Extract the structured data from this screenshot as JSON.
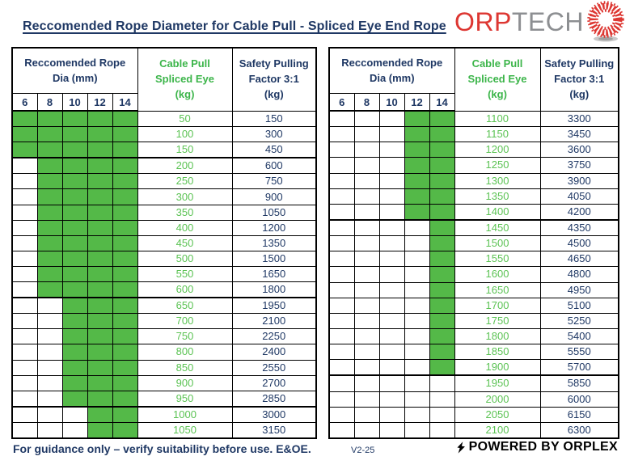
{
  "page": {
    "title": "Reccomended Rope Diameter for Cable Pull - Spliced Eye End Rope"
  },
  "logo": {
    "part_red": "ORP",
    "part_gray": "TECH",
    "icon": "rope-end-starburst-icon"
  },
  "footer": {
    "guidance": "For guidance only – verify suitability before use. E&OE.",
    "version": "V2-25",
    "powered_by": "POWERED BY ORPLEX"
  },
  "colors": {
    "navy": "#1F3864",
    "green_fill": "#54B948",
    "green_header_text": "#3CB54A",
    "green_value_text": "#5CC354",
    "logo_red": "#DD3732",
    "logo_gray": "#8D8F92"
  },
  "tables": [
    {
      "header": {
        "dia_title": "Reccomended Rope\nDia (mm)",
        "dia_columns": [
          "6",
          "8",
          "10",
          "12",
          "14"
        ],
        "cable_title": "Cable Pull\nSpliced Eye\n(kg)",
        "safety_title": "Safety Pulling\nFactor 3:1\n(kg)"
      },
      "rows": [
        {
          "cable": "50",
          "safety": "150",
          "green_from": 0,
          "group_end": false
        },
        {
          "cable": "100",
          "safety": "300",
          "green_from": 0,
          "group_end": false
        },
        {
          "cable": "150",
          "safety": "450",
          "green_from": 0,
          "group_end": true
        },
        {
          "cable": "200",
          "safety": "600",
          "green_from": 1,
          "group_end": false
        },
        {
          "cable": "250",
          "safety": "750",
          "green_from": 1,
          "group_end": false
        },
        {
          "cable": "300",
          "safety": "900",
          "green_from": 1,
          "group_end": false
        },
        {
          "cable": "350",
          "safety": "1050",
          "green_from": 1,
          "group_end": false
        },
        {
          "cable": "400",
          "safety": "1200",
          "green_from": 1,
          "group_end": false
        },
        {
          "cable": "450",
          "safety": "1350",
          "green_from": 1,
          "group_end": false
        },
        {
          "cable": "500",
          "safety": "1500",
          "green_from": 1,
          "group_end": false
        },
        {
          "cable": "550",
          "safety": "1650",
          "green_from": 1,
          "group_end": false
        },
        {
          "cable": "600",
          "safety": "1800",
          "green_from": 1,
          "group_end": true
        },
        {
          "cable": "650",
          "safety": "1950",
          "green_from": 2,
          "group_end": false
        },
        {
          "cable": "700",
          "safety": "2100",
          "green_from": 2,
          "group_end": false
        },
        {
          "cable": "750",
          "safety": "2250",
          "green_from": 2,
          "group_end": false
        },
        {
          "cable": "800",
          "safety": "2400",
          "green_from": 2,
          "group_end": false
        },
        {
          "cable": "850",
          "safety": "2550",
          "green_from": 2,
          "group_end": false
        },
        {
          "cable": "900",
          "safety": "2700",
          "green_from": 2,
          "group_end": false
        },
        {
          "cable": "950",
          "safety": "2850",
          "green_from": 2,
          "group_end": true
        },
        {
          "cable": "1000",
          "safety": "3000",
          "green_from": 3,
          "group_end": false
        },
        {
          "cable": "1050",
          "safety": "3150",
          "green_from": 3,
          "group_end": false
        }
      ]
    },
    {
      "header": {
        "dia_title": "Reccomended Rope\nDia (mm)",
        "dia_columns": [
          "6",
          "8",
          "10",
          "12",
          "14"
        ],
        "cable_title": "Cable Pull\nSpliced Eye\n(kg)",
        "safety_title": "Safety Pulling\nFactor 3:1\n(kg)"
      },
      "rows": [
        {
          "cable": "1100",
          "safety": "3300",
          "green_from": 3,
          "group_end": false
        },
        {
          "cable": "1150",
          "safety": "3450",
          "green_from": 3,
          "group_end": false
        },
        {
          "cable": "1200",
          "safety": "3600",
          "green_from": 3,
          "group_end": false
        },
        {
          "cable": "1250",
          "safety": "3750",
          "green_from": 3,
          "group_end": false
        },
        {
          "cable": "1300",
          "safety": "3900",
          "green_from": 3,
          "group_end": false
        },
        {
          "cable": "1350",
          "safety": "4050",
          "green_from": 3,
          "group_end": false
        },
        {
          "cable": "1400",
          "safety": "4200",
          "green_from": 3,
          "group_end": true
        },
        {
          "cable": "1450",
          "safety": "4350",
          "green_from": 4,
          "group_end": false
        },
        {
          "cable": "1500",
          "safety": "4500",
          "green_from": 4,
          "group_end": false
        },
        {
          "cable": "1550",
          "safety": "4650",
          "green_from": 4,
          "group_end": false
        },
        {
          "cable": "1600",
          "safety": "4800",
          "green_from": 4,
          "group_end": false
        },
        {
          "cable": "1650",
          "safety": "4950",
          "green_from": 4,
          "group_end": false
        },
        {
          "cable": "1700",
          "safety": "5100",
          "green_from": 4,
          "group_end": false
        },
        {
          "cable": "1750",
          "safety": "5250",
          "green_from": 4,
          "group_end": false
        },
        {
          "cable": "1800",
          "safety": "5400",
          "green_from": 4,
          "group_end": false
        },
        {
          "cable": "1850",
          "safety": "5550",
          "green_from": 4,
          "group_end": false
        },
        {
          "cable": "1900",
          "safety": "5700",
          "green_from": 4,
          "group_end": true
        },
        {
          "cable": "1950",
          "safety": "5850",
          "green_from": 5,
          "group_end": false
        },
        {
          "cable": "2000",
          "safety": "6000",
          "green_from": 5,
          "group_end": false
        },
        {
          "cable": "2050",
          "safety": "6150",
          "green_from": 5,
          "group_end": false
        },
        {
          "cable": "2100",
          "safety": "6300",
          "green_from": 5,
          "group_end": false
        }
      ]
    }
  ]
}
